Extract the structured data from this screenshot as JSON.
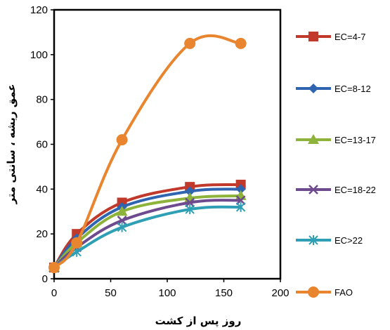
{
  "chart_data": {
    "type": "line",
    "xlabel": "روز پس از کشت",
    "ylabel": "عمق ریشه ، سانتی متر",
    "xlim": [
      0,
      200
    ],
    "ylim": [
      0,
      120
    ],
    "xticks": [
      0,
      50,
      100,
      150,
      200
    ],
    "yticks": [
      0,
      20,
      40,
      60,
      80,
      100,
      120
    ],
    "grid": false,
    "legend_position": "right",
    "series": [
      {
        "name": "EC=4-7",
        "color": "#c0392b",
        "marker": "square",
        "x": [
          0,
          20,
          60,
          120,
          165
        ],
        "y": [
          5,
          20,
          34,
          41,
          42
        ]
      },
      {
        "name": "EC=8-12",
        "color": "#2e64b0",
        "marker": "diamond",
        "x": [
          0,
          20,
          60,
          120,
          165
        ],
        "y": [
          5,
          18,
          32,
          39,
          40
        ]
      },
      {
        "name": "EC=13-17",
        "color": "#8db33b",
        "marker": "triangle",
        "x": [
          0,
          20,
          60,
          120,
          165
        ],
        "y": [
          5,
          16,
          30,
          36,
          37
        ]
      },
      {
        "name": "EC=18-22",
        "color": "#6e4a8e",
        "marker": "x",
        "x": [
          0,
          20,
          60,
          120,
          165
        ],
        "y": [
          5,
          14,
          26,
          34,
          35
        ]
      },
      {
        "name": "EC>22",
        "color": "#2e9fb5",
        "marker": "star",
        "x": [
          0,
          20,
          60,
          120,
          165
        ],
        "y": [
          5,
          12,
          23,
          31,
          32
        ]
      },
      {
        "name": "FAO",
        "color": "#e8852e",
        "marker": "circle",
        "x": [
          0,
          20,
          60,
          120,
          165
        ],
        "y": [
          5,
          16,
          62,
          105,
          105
        ]
      }
    ]
  }
}
